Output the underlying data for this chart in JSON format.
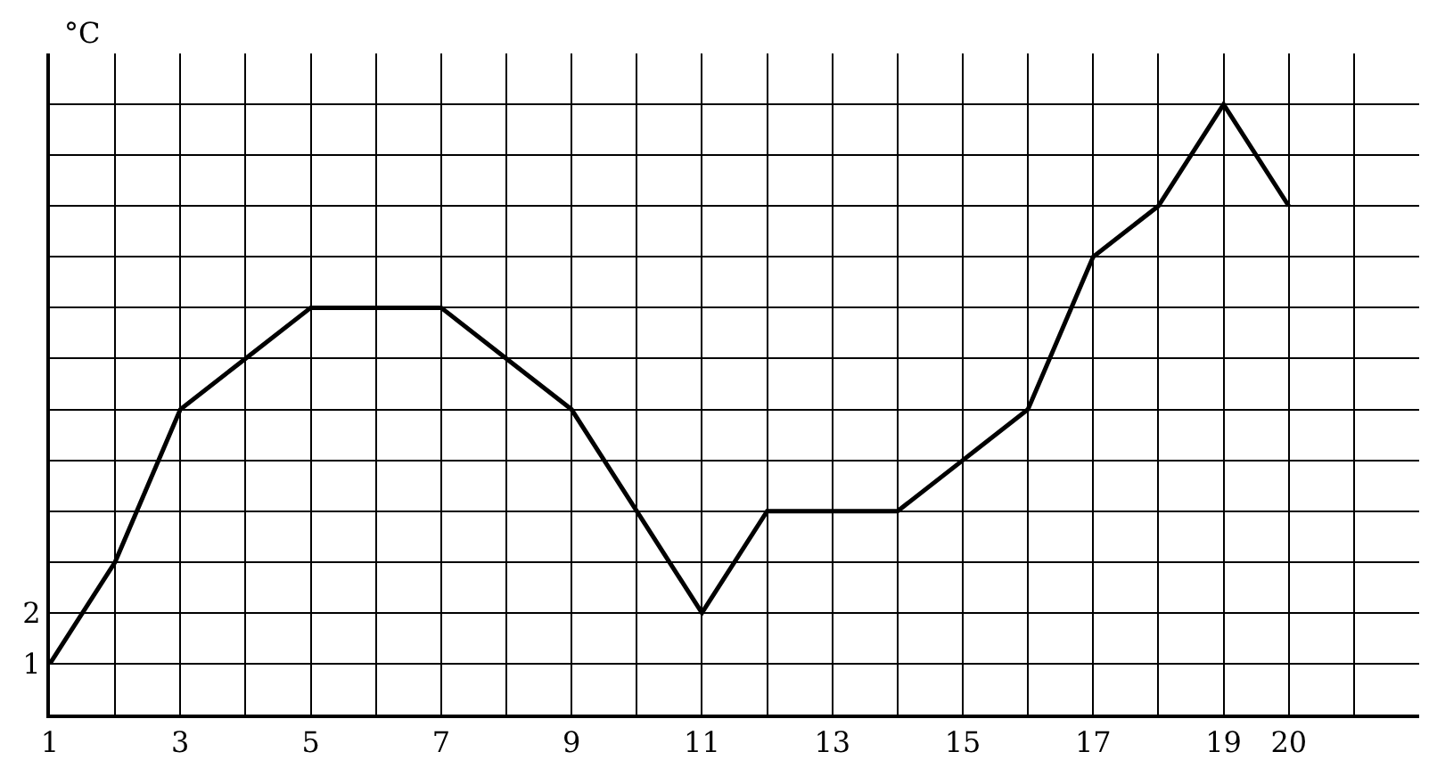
{
  "chart_data": {
    "type": "line",
    "ylabel": "°C",
    "x": [
      1,
      2,
      3,
      4,
      5,
      6,
      7,
      8,
      9,
      10,
      11,
      12,
      13,
      14,
      15,
      16,
      17,
      18,
      19,
      20
    ],
    "series": [
      {
        "color": "#000000",
        "values": [
          1,
          3,
          6,
          7,
          8,
          8,
          8,
          7,
          6,
          4,
          2,
          4,
          4,
          4,
          5,
          6,
          9,
          10,
          12,
          10
        ]
      }
    ],
    "xlim": [
      1,
      22
    ],
    "xticks": [
      1,
      {
        "value": 2,
        "label": null
      },
      3,
      {
        "value": 4,
        "label": null
      },
      5,
      {
        "value": 6,
        "label": null
      },
      7,
      {
        "value": 8,
        "label": null
      },
      9,
      {
        "value": 10,
        "label": null
      },
      11,
      {
        "value": 12,
        "label": null
      },
      13,
      {
        "value": 14,
        "label": null
      },
      15,
      {
        "value": 16,
        "label": null
      },
      17,
      {
        "value": 18,
        "label": null
      },
      19,
      20,
      {
        "value": 21,
        "label": null
      }
    ],
    "ylim": [
      0,
      13
    ],
    "yticks": [
      1,
      2,
      {
        "value": 3,
        "label": null
      },
      {
        "value": 4,
        "label": null
      },
      {
        "value": 5,
        "label": null
      },
      {
        "value": 6,
        "label": null
      },
      {
        "value": 7,
        "label": null
      },
      {
        "value": 8,
        "label": null
      },
      {
        "value": 9,
        "label": null
      },
      {
        "value": 10,
        "label": null
      },
      {
        "value": 11,
        "label": null
      },
      {
        "value": 12,
        "label": null
      }
    ],
    "grid": true,
    "marker": "none",
    "line_style": "solid"
  }
}
